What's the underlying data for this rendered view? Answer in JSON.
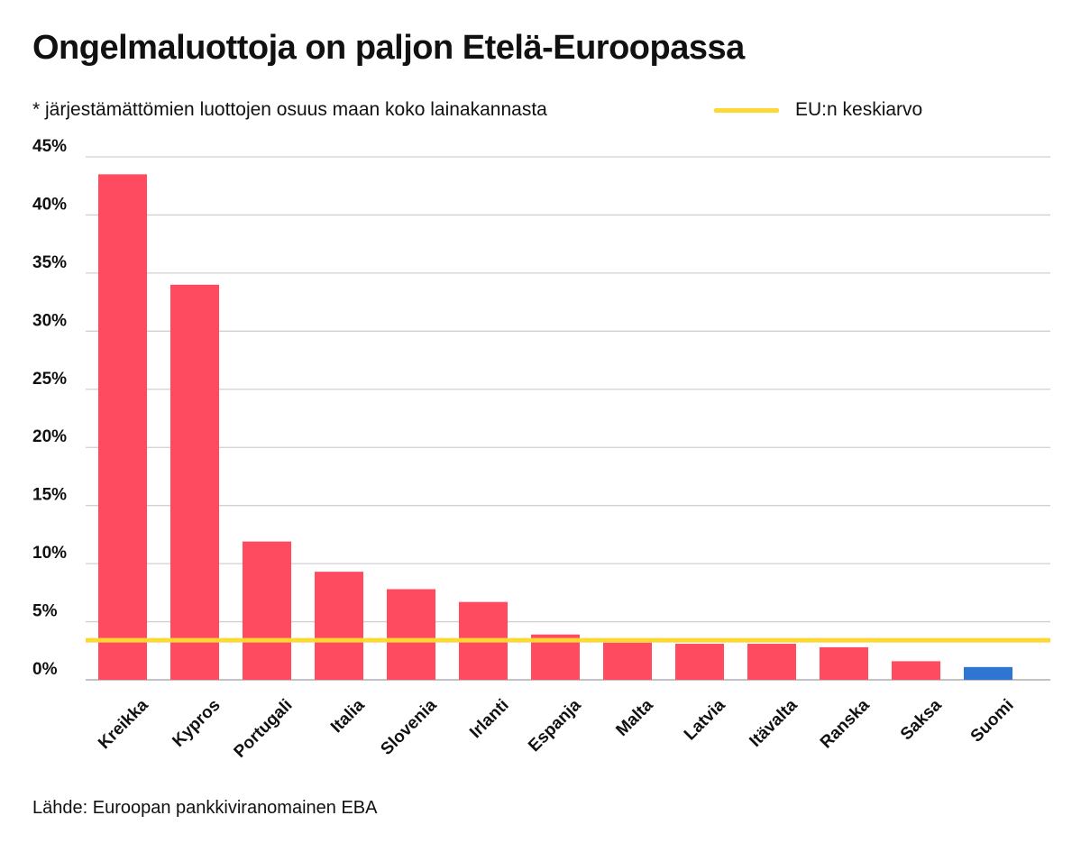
{
  "title": "Ongelmaluottoja on paljon Etelä-Euroopassa",
  "subtitle": "* järjestämättömien luottojen osuus maan koko lainakannasta",
  "legend": {
    "label": "EU:n keskiarvo"
  },
  "source": "Lähde: Euroopan pankkiviranomainen EBA",
  "colors": {
    "bar": "#ff4b5f",
    "highlight": "#2f76d2",
    "average_line": "#fdd835",
    "grid": "#d0d0d0"
  },
  "chart_data": {
    "type": "bar",
    "title": "Ongelmaluottoja on paljon Etelä-Euroopassa",
    "categories": [
      "Kreikka",
      "Kypros",
      "Portugali",
      "Italia",
      "Slovenia",
      "Irlanti",
      "Espanja",
      "Malta",
      "Latvia",
      "Itävalta",
      "Ranska",
      "Saksa",
      "Suomi"
    ],
    "values": [
      43.5,
      34.0,
      11.9,
      9.3,
      7.8,
      6.7,
      3.9,
      3.2,
      3.1,
      3.1,
      2.8,
      1.6,
      1.1
    ],
    "highlight_category": "Suomi",
    "reference_line": {
      "name": "EU:n keskiarvo",
      "value": 3.4
    },
    "ylim": [
      0,
      45
    ],
    "yticks": [
      0,
      5,
      10,
      15,
      20,
      25,
      30,
      35,
      40,
      45
    ],
    "ytick_labels": [
      "0%",
      "5%",
      "10%",
      "15%",
      "20%",
      "25%",
      "30%",
      "35%",
      "40%",
      "45%"
    ],
    "grid": true,
    "legend_position": "top-right"
  }
}
